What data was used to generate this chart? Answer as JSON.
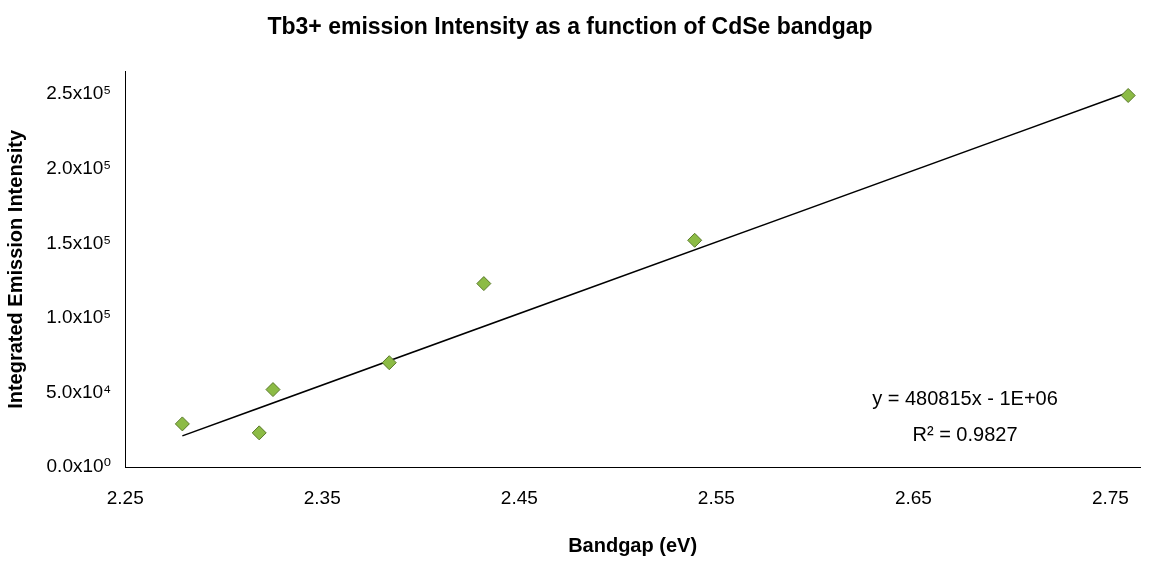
{
  "chart_data": {
    "type": "scatter",
    "title": "Tb3+ emission Intensity as a function of CdSe bandgap",
    "xlabel": "Bandgap (eV)",
    "ylabel": "Integrated Emission Intensity",
    "series": [
      {
        "marker": "diamond",
        "color": "#8cbb45",
        "x": [
          2.279,
          2.318,
          2.325,
          2.384,
          2.432,
          2.539,
          2.759
        ],
        "values": [
          29000,
          23000,
          52000,
          70000,
          123000,
          152000,
          249000
        ]
      },
      {
        "type": "line",
        "marker": "none",
        "color": "#000000",
        "x": [
          2.279,
          2.759
        ],
        "values": [
          21000,
          251000
        ]
      }
    ],
    "grid": false,
    "legend": false,
    "xlim": [
      2.25,
      2.765
    ],
    "xticks": [
      2.25,
      2.35,
      2.45,
      2.55,
      2.65,
      2.75
    ],
    "ylim": [
      0,
      265000
    ],
    "yticks": [
      {
        "value": 0,
        "label": "0.0x10⁰"
      },
      {
        "value": 50000,
        "label": "5.0x10⁴"
      },
      {
        "value": 100000,
        "label": "1.0x10⁵"
      },
      {
        "value": 150000,
        "label": "1.5x10⁵"
      },
      {
        "value": 200000,
        "label": "2.0x10⁵"
      },
      {
        "value": 250000,
        "label": "2.5x10⁵"
      }
    ],
    "annotations": [
      "y = 480815x - 1E+06",
      "R² = 0.9827"
    ]
  }
}
